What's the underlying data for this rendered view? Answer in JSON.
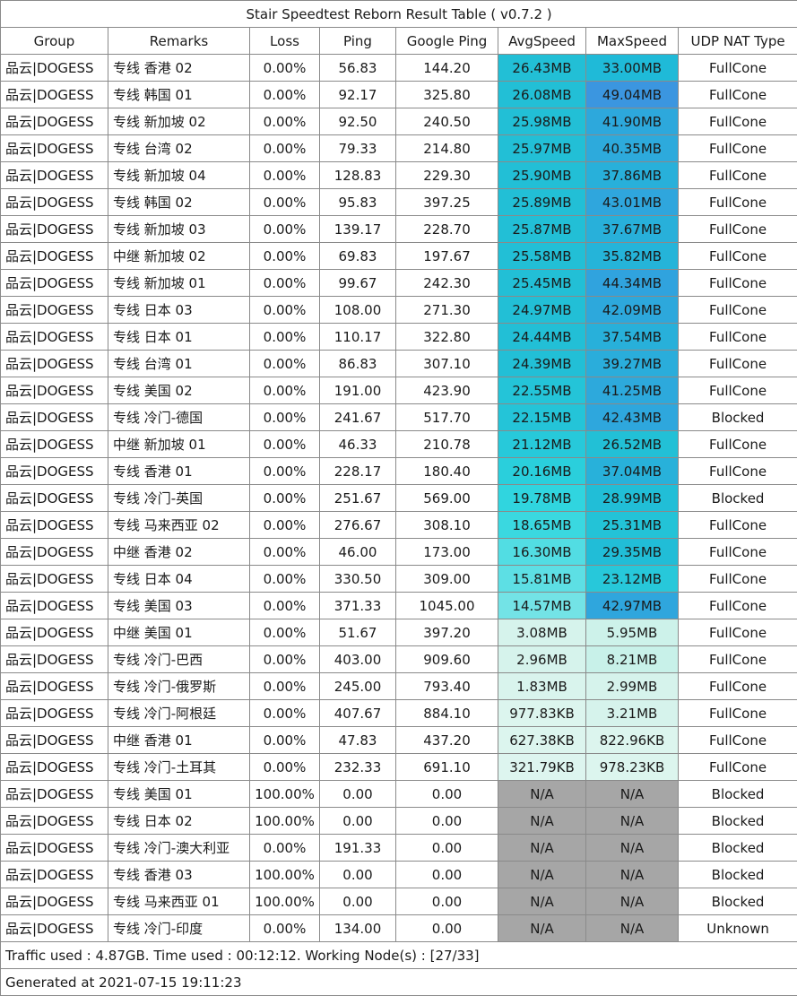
{
  "title": "Stair Speedtest Reborn Result Table ( v0.7.2 )",
  "headers": [
    "Group",
    "Remarks",
    "Loss",
    "Ping",
    "Google Ping",
    "AvgSpeed",
    "MaxSpeed",
    "UDP NAT Type"
  ],
  "rows": [
    {
      "group": "品云|DOGESS",
      "remarks": "专线 香港 02",
      "loss": "0.00%",
      "ping": "56.83",
      "gping": "144.20",
      "avg": "26.43MB",
      "max": "33.00MB",
      "nat": "FullCone",
      "avg_color": "#22bfd6",
      "max_color": "#1fbad8"
    },
    {
      "group": "品云|DOGESS",
      "remarks": "专线 韩国 01",
      "loss": "0.00%",
      "ping": "92.17",
      "gping": "325.80",
      "avg": "26.08MB",
      "max": "49.04MB",
      "nat": "FullCone",
      "avg_color": "#22bfd6",
      "max_color": "#3b96e0"
    },
    {
      "group": "品云|DOGESS",
      "remarks": "专线 新加坡 02",
      "loss": "0.00%",
      "ping": "92.50",
      "gping": "240.50",
      "avg": "25.98MB",
      "max": "41.90MB",
      "nat": "FullCone",
      "avg_color": "#22bfd6",
      "max_color": "#2da8dc"
    },
    {
      "group": "品云|DOGESS",
      "remarks": "专线 台湾 02",
      "loss": "0.00%",
      "ping": "79.33",
      "gping": "214.80",
      "avg": "25.97MB",
      "max": "40.35MB",
      "nat": "FullCone",
      "avg_color": "#22bfd6",
      "max_color": "#2daadc"
    },
    {
      "group": "品云|DOGESS",
      "remarks": "专线 新加坡 04",
      "loss": "0.00%",
      "ping": "128.83",
      "gping": "229.30",
      "avg": "25.90MB",
      "max": "37.86MB",
      "nat": "FullCone",
      "avg_color": "#22bfd6",
      "max_color": "#28b0da"
    },
    {
      "group": "品云|DOGESS",
      "remarks": "专线 韩国 02",
      "loss": "0.00%",
      "ping": "95.83",
      "gping": "397.25",
      "avg": "25.89MB",
      "max": "43.01MB",
      "nat": "FullCone",
      "avg_color": "#22bfd6",
      "max_color": "#2fa6dd"
    },
    {
      "group": "品云|DOGESS",
      "remarks": "专线 新加坡 03",
      "loss": "0.00%",
      "ping": "139.17",
      "gping": "228.70",
      "avg": "25.87MB",
      "max": "37.67MB",
      "nat": "FullCone",
      "avg_color": "#22bfd6",
      "max_color": "#28b0da"
    },
    {
      "group": "品云|DOGESS",
      "remarks": "中继 新加坡 02",
      "loss": "0.00%",
      "ping": "69.83",
      "gping": "197.67",
      "avg": "25.58MB",
      "max": "35.82MB",
      "nat": "FullCone",
      "avg_color": "#22bfd6",
      "max_color": "#25b4d9"
    },
    {
      "group": "品云|DOGESS",
      "remarks": "专线 新加坡 01",
      "loss": "0.00%",
      "ping": "99.67",
      "gping": "242.30",
      "avg": "25.45MB",
      "max": "44.34MB",
      "nat": "FullCone",
      "avg_color": "#22bfd6",
      "max_color": "#30a3de"
    },
    {
      "group": "品云|DOGESS",
      "remarks": "专线 日本 03",
      "loss": "0.00%",
      "ping": "108.00",
      "gping": "271.30",
      "avg": "24.97MB",
      "max": "42.09MB",
      "nat": "FullCone",
      "avg_color": "#22bfd6",
      "max_color": "#2da8dc"
    },
    {
      "group": "品云|DOGESS",
      "remarks": "专线 日本 01",
      "loss": "0.00%",
      "ping": "110.17",
      "gping": "322.80",
      "avg": "24.44MB",
      "max": "37.54MB",
      "nat": "FullCone",
      "avg_color": "#22bfd6",
      "max_color": "#28b0da"
    },
    {
      "group": "品云|DOGESS",
      "remarks": "专线 台湾 01",
      "loss": "0.00%",
      "ping": "86.83",
      "gping": "307.10",
      "avg": "24.39MB",
      "max": "39.27MB",
      "nat": "FullCone",
      "avg_color": "#22bfd6",
      "max_color": "#2aaddb"
    },
    {
      "group": "品云|DOGESS",
      "remarks": "专线 美国 02",
      "loss": "0.00%",
      "ping": "191.00",
      "gping": "423.90",
      "avg": "22.55MB",
      "max": "41.25MB",
      "nat": "FullCone",
      "avg_color": "#24c4d8",
      "max_color": "#2da9dc"
    },
    {
      "group": "品云|DOGESS",
      "remarks": "专线 冷门-德国",
      "loss": "0.00%",
      "ping": "241.67",
      "gping": "517.70",
      "avg": "22.15MB",
      "max": "42.43MB",
      "nat": "Blocked",
      "avg_color": "#24c4d8",
      "max_color": "#2ea7dd"
    },
    {
      "group": "品云|DOGESS",
      "remarks": "中继 新加坡 01",
      "loss": "0.00%",
      "ping": "46.33",
      "gping": "210.78",
      "avg": "21.12MB",
      "max": "26.52MB",
      "nat": "FullCone",
      "avg_color": "#27c9da",
      "max_color": "#22c0d6"
    },
    {
      "group": "品云|DOGESS",
      "remarks": "专线 香港 01",
      "loss": "0.00%",
      "ping": "228.17",
      "gping": "180.40",
      "avg": "20.16MB",
      "max": "37.04MB",
      "nat": "FullCone",
      "avg_color": "#2acfdc",
      "max_color": "#28b1da"
    },
    {
      "group": "品云|DOGESS",
      "remarks": "专线 冷门-英国",
      "loss": "0.00%",
      "ping": "251.67",
      "gping": "569.00",
      "avg": "19.78MB",
      "max": "28.99MB",
      "nat": "Blocked",
      "avg_color": "#30d5df",
      "max_color": "#21bed7"
    },
    {
      "group": "品云|DOGESS",
      "remarks": "专线 马来西亚 02",
      "loss": "0.00%",
      "ping": "276.67",
      "gping": "308.10",
      "avg": "18.65MB",
      "max": "25.31MB",
      "nat": "FullCone",
      "avg_color": "#3ad8e0",
      "max_color": "#23c3d7"
    },
    {
      "group": "品云|DOGESS",
      "remarks": "中继 香港 02",
      "loss": "0.00%",
      "ping": "46.00",
      "gping": "173.00",
      "avg": "16.30MB",
      "max": "29.35MB",
      "nat": "FullCone",
      "avg_color": "#52dde3",
      "max_color": "#21bdd7"
    },
    {
      "group": "品云|DOGESS",
      "remarks": "专线 日本 04",
      "loss": "0.00%",
      "ping": "330.50",
      "gping": "309.00",
      "avg": "15.81MB",
      "max": "23.12MB",
      "nat": "FullCone",
      "avg_color": "#5ddfe4",
      "max_color": "#27c8da"
    },
    {
      "group": "品云|DOGESS",
      "remarks": "专线 美国 03",
      "loss": "0.00%",
      "ping": "371.33",
      "gping": "1045.00",
      "avg": "14.57MB",
      "max": "42.97MB",
      "nat": "FullCone",
      "avg_color": "#73e3e6",
      "max_color": "#2fa6dd"
    },
    {
      "group": "品云|DOGESS",
      "remarks": "中继 美国 01",
      "loss": "0.00%",
      "ping": "51.67",
      "gping": "397.20",
      "avg": "3.08MB",
      "max": "5.95MB",
      "nat": "FullCone",
      "avg_color": "#d6f3ec",
      "max_color": "#cdf2ea"
    },
    {
      "group": "品云|DOGESS",
      "remarks": "专线 冷门-巴西",
      "loss": "0.00%",
      "ping": "403.00",
      "gping": "909.60",
      "avg": "2.96MB",
      "max": "8.21MB",
      "nat": "FullCone",
      "avg_color": "#d6f3ec",
      "max_color": "#c8f1e9"
    },
    {
      "group": "品云|DOGESS",
      "remarks": "专线 冷门-俄罗斯",
      "loss": "0.00%",
      "ping": "245.00",
      "gping": "793.40",
      "avg": "1.83MB",
      "max": "2.99MB",
      "nat": "FullCone",
      "avg_color": "#d9f4ed",
      "max_color": "#d6f3ec"
    },
    {
      "group": "品云|DOGESS",
      "remarks": "专线 冷门-阿根廷",
      "loss": "0.00%",
      "ping": "407.67",
      "gping": "884.10",
      "avg": "977.83KB",
      "max": "3.21MB",
      "nat": "FullCone",
      "avg_color": "#dcf5ee",
      "max_color": "#d6f3ec"
    },
    {
      "group": "品云|DOGESS",
      "remarks": "中继 香港 01",
      "loss": "0.00%",
      "ping": "47.83",
      "gping": "437.20",
      "avg": "627.38KB",
      "max": "822.96KB",
      "nat": "FullCone",
      "avg_color": "#dcf5ee",
      "max_color": "#dcf5ee"
    },
    {
      "group": "品云|DOGESS",
      "remarks": "专线 冷门-土耳其",
      "loss": "0.00%",
      "ping": "232.33",
      "gping": "691.10",
      "avg": "321.79KB",
      "max": "978.23KB",
      "nat": "FullCone",
      "avg_color": "#ddf5ef",
      "max_color": "#dcf5ee"
    },
    {
      "group": "品云|DOGESS",
      "remarks": "专线 美国 01",
      "loss": "100.00%",
      "ping": "0.00",
      "gping": "0.00",
      "avg": "N/A",
      "max": "N/A",
      "nat": "Blocked",
      "avg_color": "#a6a6a6",
      "max_color": "#a6a6a6"
    },
    {
      "group": "品云|DOGESS",
      "remarks": "专线 日本 02",
      "loss": "100.00%",
      "ping": "0.00",
      "gping": "0.00",
      "avg": "N/A",
      "max": "N/A",
      "nat": "Blocked",
      "avg_color": "#a6a6a6",
      "max_color": "#a6a6a6"
    },
    {
      "group": "品云|DOGESS",
      "remarks": "专线 冷门-澳大利亚",
      "loss": "0.00%",
      "ping": "191.33",
      "gping": "0.00",
      "avg": "N/A",
      "max": "N/A",
      "nat": "Blocked",
      "avg_color": "#a6a6a6",
      "max_color": "#a6a6a6"
    },
    {
      "group": "品云|DOGESS",
      "remarks": "专线 香港 03",
      "loss": "100.00%",
      "ping": "0.00",
      "gping": "0.00",
      "avg": "N/A",
      "max": "N/A",
      "nat": "Blocked",
      "avg_color": "#a6a6a6",
      "max_color": "#a6a6a6"
    },
    {
      "group": "品云|DOGESS",
      "remarks": "专线 马来西亚 01",
      "loss": "100.00%",
      "ping": "0.00",
      "gping": "0.00",
      "avg": "N/A",
      "max": "N/A",
      "nat": "Blocked",
      "avg_color": "#a6a6a6",
      "max_color": "#a6a6a6"
    },
    {
      "group": "品云|DOGESS",
      "remarks": "专线 冷门-印度",
      "loss": "0.00%",
      "ping": "134.00",
      "gping": "0.00",
      "avg": "N/A",
      "max": "N/A",
      "nat": "Unknown",
      "avg_color": "#a6a6a6",
      "max_color": "#a6a6a6"
    }
  ],
  "footer": {
    "traffic": "Traffic used : 4.87GB. Time used : 00:12:12. Working Node(s) : [27/33]",
    "generated": "Generated at 2021-07-15 19:11:23"
  }
}
